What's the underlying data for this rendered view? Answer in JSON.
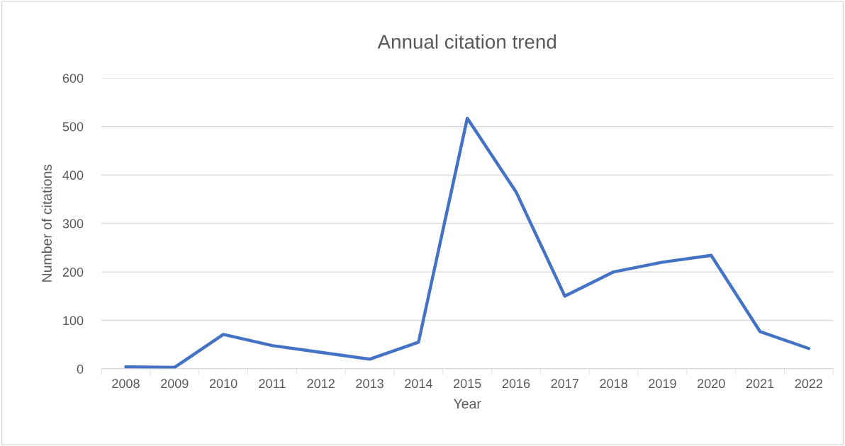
{
  "chart_data": {
    "type": "line",
    "title": "Annual citation trend",
    "xlabel": "Year",
    "ylabel": "Number of citations",
    "categories": [
      "2008",
      "2009",
      "2010",
      "2011",
      "2012",
      "2013",
      "2014",
      "2015",
      "2016",
      "2017",
      "2018",
      "2019",
      "2020",
      "2021",
      "2022"
    ],
    "series": [
      {
        "color": "#4472c4",
        "values": [
          4,
          3,
          71,
          48,
          34,
          20,
          55,
          517,
          365,
          150,
          200,
          220,
          234,
          77,
          42
        ]
      }
    ],
    "ylim": [
      0,
      600
    ],
    "yticks": [
      0,
      100,
      200,
      300,
      400,
      500,
      600
    ],
    "grid": "y",
    "legend": false,
    "marker": "none",
    "line_style": "solid"
  }
}
